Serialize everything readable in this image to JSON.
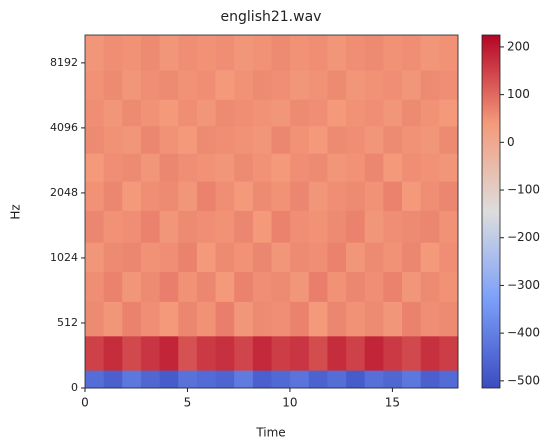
{
  "chart_data": {
    "type": "heatmap",
    "title": "english21.wav",
    "xlabel": "Time",
    "ylabel": "Hz",
    "x_bins": [
      0,
      0.91,
      1.82,
      2.73,
      3.64,
      4.55,
      5.46,
      6.37,
      7.28,
      8.19,
      9.1,
      10.01,
      10.92,
      11.83,
      12.74,
      13.65,
      14.56,
      15.47,
      16.38,
      17.29,
      18.2
    ],
    "y_bins": [
      0,
      140,
      410,
      644,
      885,
      1210,
      1699,
      2320,
      3125,
      4183,
      5555,
      7590,
      11025
    ],
    "z": [
      [
        -440,
        -470,
        -420,
        -455,
        -480,
        -430,
        -445,
        -460,
        -410,
        -470,
        -450,
        -425,
        -465,
        -440,
        -480,
        -435,
        -455,
        -420,
        -470,
        -445
      ],
      [
        150,
        175,
        140,
        165,
        185,
        130,
        160,
        170,
        145,
        180,
        155,
        165,
        135,
        175,
        150,
        185,
        160,
        140,
        170,
        155
      ],
      [
        60,
        45,
        70,
        55,
        40,
        65,
        50,
        75,
        45,
        60,
        55,
        70,
        40,
        65,
        50,
        60,
        45,
        70,
        55,
        60
      ],
      [
        55,
        70,
        45,
        60,
        75,
        50,
        65,
        40,
        70,
        55,
        60,
        45,
        75,
        50,
        65,
        55,
        70,
        45,
        60,
        50
      ],
      [
        45,
        60,
        65,
        50,
        55,
        70,
        40,
        60,
        50,
        65,
        45,
        60,
        55,
        70,
        45,
        60,
        50,
        65,
        40,
        55
      ],
      [
        65,
        50,
        55,
        70,
        45,
        60,
        55,
        50,
        65,
        40,
        70,
        55,
        50,
        60,
        70,
        45,
        55,
        60,
        65,
        50
      ],
      [
        50,
        65,
        40,
        55,
        60,
        45,
        70,
        55,
        40,
        60,
        50,
        65,
        45,
        55,
        60,
        50,
        70,
        40,
        55,
        65
      ],
      [
        40,
        55,
        60,
        45,
        65,
        55,
        50,
        45,
        60,
        50,
        40,
        55,
        60,
        45,
        50,
        65,
        40,
        55,
        50,
        45
      ],
      [
        60,
        50,
        45,
        65,
        50,
        40,
        60,
        55,
        50,
        45,
        65,
        50,
        40,
        60,
        55,
        45,
        60,
        50,
        45,
        60
      ],
      [
        55,
        45,
        60,
        50,
        40,
        55,
        45,
        60,
        55,
        50,
        45,
        60,
        55,
        40,
        50,
        55,
        45,
        60,
        50,
        40
      ],
      [
        50,
        60,
        45,
        55,
        60,
        50,
        55,
        40,
        50,
        60,
        55,
        45,
        50,
        60,
        45,
        50,
        55,
        45,
        60,
        55
      ],
      [
        45,
        55,
        50,
        60,
        45,
        55,
        50,
        55,
        45,
        50,
        60,
        50,
        55,
        45,
        55,
        60,
        50,
        55,
        45,
        50
      ]
    ],
    "xlim": [
      0,
      18.2
    ],
    "xticks": [
      0,
      5,
      10,
      15
    ],
    "ylim": [
      0,
      11025
    ],
    "yticks": [
      0,
      512,
      1024,
      2048,
      4096,
      8192
    ],
    "yscale": "symlog",
    "linthresh": 512,
    "colormap": "coolwarm",
    "clim": [
      -515,
      225
    ],
    "colorbar_ticks": [
      200,
      100,
      0,
      {
        "value": -100,
        "label": "−100"
      },
      {
        "value": -200,
        "label": "−200"
      },
      {
        "value": -300,
        "label": "−300"
      },
      {
        "value": -400,
        "label": "−400"
      },
      {
        "value": -500,
        "label": "−500"
      }
    ]
  }
}
